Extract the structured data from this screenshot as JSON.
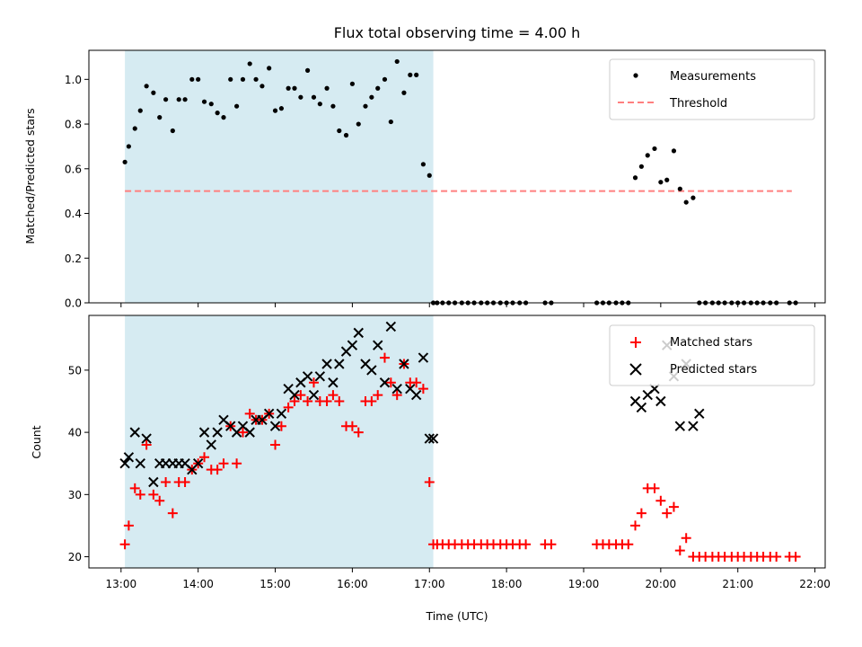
{
  "chart_data": [
    {
      "type": "scatter",
      "title": "Flux total observing time = 4.00 h",
      "xlabel": "",
      "ylabel": "Matched/Predicted stars",
      "xlim": [
        12.583,
        22.133
      ],
      "ylim": [
        0,
        1.13
      ],
      "yticks": [
        0.0,
        0.2,
        0.4,
        0.6,
        0.8,
        1.0
      ],
      "ytick_labels": [
        "0.0",
        "0.2",
        "0.4",
        "0.6",
        "0.8",
        "1.0"
      ],
      "xticks": [
        13,
        14,
        15,
        16,
        17,
        18,
        19,
        20,
        21,
        22
      ],
      "observing_window": [
        13.05,
        17.05
      ],
      "threshold": 0.5,
      "threshold_range": [
        13.05,
        21.7
      ],
      "legend_position": "upper right",
      "legend": [
        "Measurements",
        "Threshold"
      ],
      "colors": {
        "measurements": "#000000",
        "threshold": "#ff7f7f",
        "window": "#add8e6"
      },
      "series": [
        {
          "name": "Measurements",
          "x": [
            13.05,
            13.1,
            13.18,
            13.25,
            13.33,
            13.42,
            13.5,
            13.58,
            13.67,
            13.75,
            13.83,
            13.92,
            14.0,
            14.08,
            14.17,
            14.25,
            14.33,
            14.42,
            14.5,
            14.58,
            14.67,
            14.75,
            14.83,
            14.92,
            15.0,
            15.08,
            15.17,
            15.25,
            15.33,
            15.42,
            15.5,
            15.58,
            15.67,
            15.75,
            15.83,
            15.92,
            16.0,
            16.08,
            16.17,
            16.25,
            16.33,
            16.42,
            16.5,
            16.58,
            16.67,
            16.75,
            16.83,
            16.92,
            17.0,
            17.05,
            17.1,
            17.17,
            17.25,
            17.33,
            17.42,
            17.5,
            17.58,
            17.67,
            17.75,
            17.83,
            17.92,
            18.0,
            18.08,
            18.17,
            18.25,
            18.5,
            18.58,
            19.17,
            19.25,
            19.33,
            19.42,
            19.5,
            19.58,
            19.67,
            19.75,
            19.83,
            19.92,
            20.0,
            20.08,
            20.17,
            20.25,
            20.33,
            20.42,
            20.5,
            20.58,
            20.67,
            20.75,
            20.83,
            20.92,
            21.0,
            21.08,
            21.17,
            21.25,
            21.33,
            21.42,
            21.5,
            21.67,
            21.75
          ],
          "y": [
            0.63,
            0.7,
            0.78,
            0.86,
            0.97,
            0.94,
            0.83,
            0.91,
            0.77,
            0.91,
            0.91,
            1.0,
            1.0,
            0.9,
            0.89,
            0.85,
            0.83,
            1.0,
            0.88,
            1.0,
            1.07,
            1.0,
            0.97,
            1.05,
            0.86,
            0.87,
            0.96,
            0.96,
            0.92,
            1.04,
            0.92,
            0.89,
            0.96,
            0.88,
            0.77,
            0.75,
            0.98,
            0.8,
            0.88,
            0.92,
            0.96,
            1.0,
            0.81,
            1.08,
            0.94,
            1.02,
            1.02,
            0.62,
            0.57,
            0.0,
            0.0,
            0.0,
            0.0,
            0.0,
            0.0,
            0.0,
            0.0,
            0.0,
            0.0,
            0.0,
            0.0,
            0.0,
            0.0,
            0.0,
            0.0,
            0.0,
            0.0,
            0.0,
            0.0,
            0.0,
            0.0,
            0.0,
            0.0,
            0.56,
            0.61,
            0.66,
            0.69,
            0.54,
            0.55,
            0.68,
            0.51,
            0.45,
            0.47,
            0.0,
            0.0,
            0.0,
            0.0,
            0.0,
            0.0,
            0.0,
            0.0,
            0.0,
            0.0,
            0.0,
            0.0,
            0.0,
            0.0,
            0.0
          ]
        }
      ]
    },
    {
      "type": "scatter",
      "title": "",
      "xlabel": "Time (UTC)",
      "ylabel": "Count",
      "xlim": [
        12.583,
        22.133
      ],
      "ylim": [
        18.2,
        58.8
      ],
      "yticks": [
        20,
        30,
        40,
        50
      ],
      "ytick_labels": [
        "20",
        "30",
        "40",
        "50"
      ],
      "xticks": [
        13,
        14,
        15,
        16,
        17,
        18,
        19,
        20,
        21,
        22
      ],
      "xtick_labels": [
        "13:00",
        "14:00",
        "15:00",
        "16:00",
        "17:00",
        "18:00",
        "19:00",
        "20:00",
        "21:00",
        "22:00"
      ],
      "observing_window": [
        13.05,
        17.05
      ],
      "legend_position": "upper right",
      "legend": [
        "Matched stars",
        "Predicted stars"
      ],
      "colors": {
        "matched": "#ff0000",
        "predicted": "#000000",
        "window": "#add8e6"
      },
      "series": [
        {
          "name": "Matched stars",
          "x": [
            13.05,
            13.1,
            13.18,
            13.25,
            13.33,
            13.42,
            13.5,
            13.58,
            13.67,
            13.75,
            13.83,
            13.92,
            14.0,
            14.08,
            14.17,
            14.25,
            14.33,
            14.42,
            14.5,
            14.58,
            14.67,
            14.75,
            14.83,
            14.92,
            15.0,
            15.08,
            15.17,
            15.25,
            15.33,
            15.42,
            15.5,
            15.58,
            15.67,
            15.75,
            15.83,
            15.92,
            16.0,
            16.08,
            16.17,
            16.25,
            16.33,
            16.42,
            16.5,
            16.58,
            16.67,
            16.75,
            16.83,
            16.92,
            17.0,
            17.05,
            17.1,
            17.17,
            17.25,
            17.33,
            17.42,
            17.5,
            17.58,
            17.67,
            17.75,
            17.83,
            17.92,
            18.0,
            18.08,
            18.17,
            18.25,
            18.5,
            18.58,
            19.17,
            19.25,
            19.33,
            19.42,
            19.5,
            19.58,
            19.67,
            19.75,
            19.83,
            19.92,
            20.0,
            20.08,
            20.17,
            20.25,
            20.33,
            20.42,
            20.5,
            20.58,
            20.67,
            20.75,
            20.83,
            20.92,
            21.0,
            21.08,
            21.17,
            21.25,
            21.33,
            21.42,
            21.5,
            21.67,
            21.75
          ],
          "y": [
            22,
            25,
            31,
            30,
            38,
            30,
            29,
            32,
            27,
            32,
            32,
            34,
            35,
            36,
            34,
            34,
            35,
            41,
            35,
            40,
            43,
            42,
            42,
            43,
            38,
            41,
            44,
            45,
            46,
            45,
            48,
            45,
            45,
            46,
            45,
            41,
            41,
            40,
            45,
            45,
            46,
            52,
            48,
            46,
            51,
            48,
            48,
            47,
            32,
            22,
            22,
            22,
            22,
            22,
            22,
            22,
            22,
            22,
            22,
            22,
            22,
            22,
            22,
            22,
            22,
            22,
            22,
            22,
            22,
            22,
            22,
            22,
            22,
            25,
            27,
            31,
            31,
            29,
            27,
            28,
            21,
            23,
            20,
            20,
            20,
            20,
            20,
            20,
            20,
            20,
            20,
            20,
            20,
            20,
            20,
            20,
            20,
            20
          ]
        },
        {
          "name": "Predicted stars",
          "x": [
            13.05,
            13.1,
            13.18,
            13.25,
            13.33,
            13.42,
            13.5,
            13.58,
            13.67,
            13.75,
            13.83,
            13.92,
            14.0,
            14.08,
            14.17,
            14.25,
            14.33,
            14.42,
            14.5,
            14.58,
            14.67,
            14.75,
            14.83,
            14.92,
            15.0,
            15.08,
            15.17,
            15.25,
            15.33,
            15.42,
            15.5,
            15.58,
            15.67,
            15.75,
            15.83,
            15.92,
            16.0,
            16.08,
            16.17,
            16.25,
            16.33,
            16.42,
            16.5,
            16.58,
            16.67,
            16.75,
            16.83,
            16.92,
            17.0,
            17.05,
            19.67,
            19.75,
            19.83,
            19.92,
            20.0,
            20.08,
            20.17,
            20.25,
            20.33,
            20.42,
            20.5
          ],
          "y": [
            35,
            36,
            40,
            35,
            39,
            32,
            35,
            35,
            35,
            35,
            35,
            34,
            35,
            40,
            38,
            40,
            42,
            41,
            40,
            41,
            40,
            42,
            42,
            43,
            41,
            43,
            47,
            46,
            48,
            49,
            46,
            49,
            51,
            48,
            51,
            53,
            54,
            56,
            51,
            50,
            54,
            48,
            57,
            47,
            51,
            47,
            46,
            52,
            39,
            39,
            45,
            44,
            46,
            47,
            45,
            54,
            49,
            41,
            51,
            41,
            43
          ]
        }
      ]
    }
  ]
}
